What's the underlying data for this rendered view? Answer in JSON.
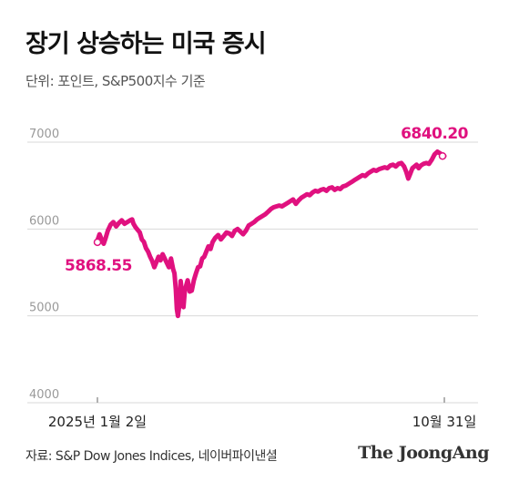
{
  "header": {
    "title": "장기 상승하는 미국 증시",
    "subtitle": "단위: 포인트, S&P500지수 기준"
  },
  "footer": {
    "source": "자료: S&P Dow Jones Indices, 네이버파이낸셜",
    "brand": "The JoongAng"
  },
  "colors": {
    "line": "#e0117f",
    "grid": "#d9d9d9",
    "axis_text": "#999999",
    "label_text": "#e0117f"
  },
  "chart_data": {
    "type": "line",
    "title": "장기 상승하는 미국 증시",
    "subtitle": "단위: 포인트, S&P500지수 기준",
    "xlabel": "",
    "ylabel": "",
    "ylim": [
      4000,
      7000
    ],
    "yticks": [
      7000,
      6000,
      5000,
      4000
    ],
    "xtick_labels": [
      "2025년 1월 2일",
      "10월 31일"
    ],
    "grid": true,
    "annotations": [
      {
        "label": "5868.55",
        "x": 0,
        "y": 5868.55
      },
      {
        "label": "6840.20",
        "x": 1,
        "y": 6840.2
      }
    ],
    "series": [
      {
        "values": [
          [
            0.0,
            5868.55
          ],
          [
            0.006,
            5940
          ],
          [
            0.012,
            5880
          ],
          [
            0.018,
            5830
          ],
          [
            0.024,
            5900
          ],
          [
            0.03,
            5980
          ],
          [
            0.038,
            6050
          ],
          [
            0.046,
            6080
          ],
          [
            0.054,
            6030
          ],
          [
            0.062,
            6070
          ],
          [
            0.07,
            6100
          ],
          [
            0.078,
            6060
          ],
          [
            0.086,
            6080
          ],
          [
            0.094,
            6100
          ],
          [
            0.1,
            6110
          ],
          [
            0.104,
            6060
          ],
          [
            0.11,
            6020
          ],
          [
            0.116,
            5990
          ],
          [
            0.122,
            5960
          ],
          [
            0.128,
            5880
          ],
          [
            0.134,
            5850
          ],
          [
            0.14,
            5780
          ],
          [
            0.146,
            5740
          ],
          [
            0.152,
            5680
          ],
          [
            0.158,
            5630
          ],
          [
            0.164,
            5560
          ],
          [
            0.17,
            5620
          ],
          [
            0.176,
            5680
          ],
          [
            0.182,
            5640
          ],
          [
            0.188,
            5710
          ],
          [
            0.194,
            5660
          ],
          [
            0.2,
            5610
          ],
          [
            0.206,
            5560
          ],
          [
            0.212,
            5660
          ],
          [
            0.218,
            5540
          ],
          [
            0.222,
            5490
          ],
          [
            0.226,
            5300
          ],
          [
            0.229,
            5080
          ],
          [
            0.232,
            5000
          ],
          [
            0.236,
            5120
          ],
          [
            0.24,
            5400
          ],
          [
            0.244,
            5250
          ],
          [
            0.248,
            5100
          ],
          [
            0.252,
            5290
          ],
          [
            0.256,
            5350
          ],
          [
            0.26,
            5410
          ],
          [
            0.266,
            5280
          ],
          [
            0.272,
            5290
          ],
          [
            0.278,
            5410
          ],
          [
            0.284,
            5490
          ],
          [
            0.29,
            5560
          ],
          [
            0.296,
            5570
          ],
          [
            0.302,
            5660
          ],
          [
            0.308,
            5680
          ],
          [
            0.314,
            5740
          ],
          [
            0.32,
            5800
          ],
          [
            0.326,
            5770
          ],
          [
            0.332,
            5850
          ],
          [
            0.34,
            5900
          ],
          [
            0.348,
            5930
          ],
          [
            0.356,
            5880
          ],
          [
            0.364,
            5920
          ],
          [
            0.372,
            5960
          ],
          [
            0.38,
            5950
          ],
          [
            0.388,
            5920
          ],
          [
            0.396,
            5980
          ],
          [
            0.404,
            6000
          ],
          [
            0.412,
            5970
          ],
          [
            0.42,
            5940
          ],
          [
            0.428,
            5980
          ],
          [
            0.436,
            6040
          ],
          [
            0.444,
            6060
          ],
          [
            0.452,
            6080
          ],
          [
            0.46,
            6110
          ],
          [
            0.468,
            6130
          ],
          [
            0.476,
            6150
          ],
          [
            0.484,
            6170
          ],
          [
            0.492,
            6200
          ],
          [
            0.5,
            6230
          ],
          [
            0.508,
            6250
          ],
          [
            0.516,
            6260
          ],
          [
            0.524,
            6270
          ],
          [
            0.532,
            6260
          ],
          [
            0.54,
            6280
          ],
          [
            0.548,
            6300
          ],
          [
            0.556,
            6320
          ],
          [
            0.564,
            6340
          ],
          [
            0.572,
            6290
          ],
          [
            0.58,
            6330
          ],
          [
            0.588,
            6360
          ],
          [
            0.596,
            6380
          ],
          [
            0.604,
            6400
          ],
          [
            0.612,
            6390
          ],
          [
            0.62,
            6420
          ],
          [
            0.628,
            6440
          ],
          [
            0.636,
            6430
          ],
          [
            0.644,
            6450
          ],
          [
            0.652,
            6460
          ],
          [
            0.66,
            6440
          ],
          [
            0.668,
            6470
          ],
          [
            0.676,
            6480
          ],
          [
            0.684,
            6450
          ],
          [
            0.692,
            6470
          ],
          [
            0.7,
            6460
          ],
          [
            0.708,
            6490
          ],
          [
            0.716,
            6500
          ],
          [
            0.724,
            6520
          ],
          [
            0.732,
            6540
          ],
          [
            0.74,
            6560
          ],
          [
            0.748,
            6580
          ],
          [
            0.756,
            6600
          ],
          [
            0.764,
            6620
          ],
          [
            0.772,
            6610
          ],
          [
            0.78,
            6640
          ],
          [
            0.788,
            6660
          ],
          [
            0.796,
            6680
          ],
          [
            0.804,
            6670
          ],
          [
            0.812,
            6690
          ],
          [
            0.82,
            6700
          ],
          [
            0.828,
            6710
          ],
          [
            0.836,
            6700
          ],
          [
            0.844,
            6730
          ],
          [
            0.852,
            6740
          ],
          [
            0.86,
            6720
          ],
          [
            0.868,
            6750
          ],
          [
            0.876,
            6760
          ],
          [
            0.884,
            6720
          ],
          [
            0.89,
            6660
          ],
          [
            0.896,
            6580
          ],
          [
            0.902,
            6640
          ],
          [
            0.908,
            6700
          ],
          [
            0.914,
            6720
          ],
          [
            0.92,
            6740
          ],
          [
            0.926,
            6700
          ],
          [
            0.932,
            6730
          ],
          [
            0.94,
            6750
          ],
          [
            0.948,
            6760
          ],
          [
            0.956,
            6750
          ],
          [
            0.964,
            6800
          ],
          [
            0.972,
            6860
          ],
          [
            0.98,
            6890
          ],
          [
            0.988,
            6870
          ],
          [
            1.0,
            6840.2
          ]
        ]
      }
    ]
  }
}
